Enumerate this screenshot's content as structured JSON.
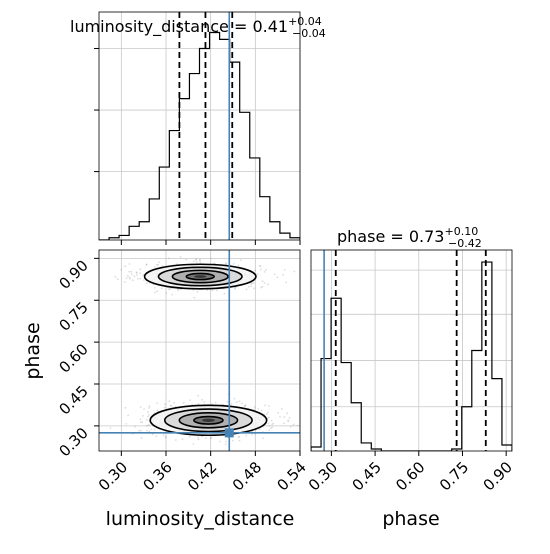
{
  "chart_data": {
    "type": "corner",
    "panels": {
      "hist_luminosity_distance": {
        "type": "histogram",
        "title": "luminosity_distance = 0.41",
        "title_sup": "+0.04",
        "title_sub": "−0.04",
        "xlim": [
          0.27,
          0.54
        ],
        "ylim": [
          0,
          1
        ],
        "bin_edges": [
          0.27,
          0.2835,
          0.297,
          0.3105,
          0.324,
          0.3375,
          0.351,
          0.3645,
          0.378,
          0.3915,
          0.405,
          0.4185,
          0.432,
          0.4455,
          0.459,
          0.4725,
          0.486,
          0.4995,
          0.513,
          0.5265,
          0.54
        ],
        "heights": [
          0.0,
          0.01,
          0.02,
          0.06,
          0.08,
          0.18,
          0.32,
          0.48,
          0.62,
          0.73,
          0.84,
          0.91,
          0.88,
          0.78,
          0.56,
          0.36,
          0.19,
          0.08,
          0.03,
          0.01
        ],
        "quantile_lines": [
          0.378,
          0.413,
          0.449
        ],
        "truth": 0.445,
        "grid": true
      },
      "hist_phase": {
        "type": "histogram",
        "title": "phase = 0.73",
        "title_sup": "+0.10",
        "title_sub": "−0.42",
        "xlim": [
          0.23,
          0.92
        ],
        "ylim": [
          0,
          1
        ],
        "bin_edges": [
          0.23,
          0.2645,
          0.299,
          0.3335,
          0.368,
          0.4025,
          0.437,
          0.4715,
          0.506,
          0.5405,
          0.575,
          0.6095,
          0.644,
          0.6785,
          0.713,
          0.7475,
          0.782,
          0.8165,
          0.851,
          0.8855,
          0.92
        ],
        "heights": [
          0.02,
          0.46,
          0.76,
          0.44,
          0.24,
          0.04,
          0.01,
          0.0,
          0.0,
          0.0,
          0.0,
          0.0,
          0.0,
          0.0,
          0.01,
          0.22,
          0.5,
          0.94,
          0.36,
          0.03
        ],
        "quantile_lines": [
          0.315,
          0.73,
          0.83
        ],
        "truth": 0.275,
        "grid": true
      },
      "density_2d": {
        "type": "contour",
        "xlim": [
          0.27,
          0.54
        ],
        "ylim": [
          0.21,
          0.93
        ],
        "ylabel": "phase",
        "xlabel": "luminosity_distance",
        "truth": {
          "x": 0.445,
          "y": 0.275
        },
        "modes": [
          {
            "x": 0.406,
            "y": 0.835,
            "sx": 0.0374,
            "sy": 0.022,
            "weight": 0.5
          },
          {
            "x": 0.417,
            "y": 0.32,
            "sx": 0.0391,
            "sy": 0.0268,
            "weight": 0.5
          }
        ],
        "grid": true
      }
    },
    "axes": {
      "luminosity_distance": {
        "label": "luminosity_distance",
        "ticks": [
          0.3,
          0.36,
          0.42,
          0.48,
          0.54
        ],
        "tick_labels": [
          "0.30",
          "0.36",
          "0.42",
          "0.48",
          "0.54"
        ]
      },
      "phase_y": {
        "label": "phase",
        "ticks": [
          0.3,
          0.45,
          0.6,
          0.75,
          0.9
        ],
        "tick_labels": [
          "0.30",
          "0.45",
          "0.60",
          "0.75",
          "0.90"
        ]
      },
      "phase_x": {
        "label": "phase",
        "ticks": [
          0.3,
          0.45,
          0.6,
          0.75,
          0.9
        ],
        "tick_labels": [
          "0.30",
          "0.45",
          "0.60",
          "0.75",
          "0.90"
        ]
      }
    },
    "colors": {
      "truth": "#4682b4",
      "histogram": "#000000",
      "quantile": "#000000",
      "grid": "#c8c8c8",
      "scatter": "#9e9e9e"
    }
  }
}
